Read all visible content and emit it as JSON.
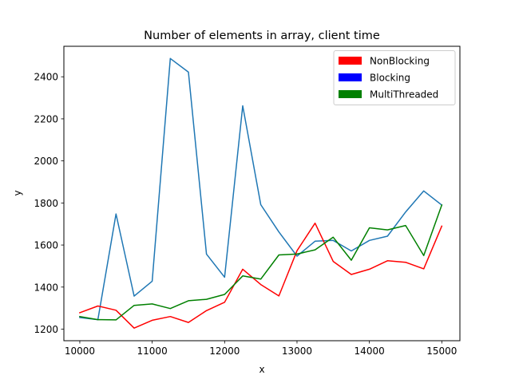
{
  "chart_data": {
    "type": "line",
    "title": "Number of elements in array, client time",
    "xlabel": "x",
    "ylabel": "y",
    "xlim": [
      9780,
      15250
    ],
    "ylim": [
      1145,
      2545
    ],
    "xticks": [
      10000,
      11000,
      12000,
      13000,
      14000,
      15000
    ],
    "yticks": [
      1200,
      1400,
      1600,
      1800,
      2000,
      2200,
      2400
    ],
    "grid": false,
    "legend_position": "top-right",
    "legend": [
      {
        "label": "NonBlocking",
        "color": "#ff0000"
      },
      {
        "label": "Blocking",
        "color": "#0000ff"
      },
      {
        "label": "MultiThreaded",
        "color": "#008000"
      }
    ],
    "x": [
      10000,
      10250,
      10500,
      10750,
      11000,
      11250,
      11500,
      11750,
      12000,
      12250,
      12500,
      12750,
      13000,
      13250,
      13500,
      13750,
      14000,
      14250,
      14500,
      14750,
      15000
    ],
    "series": [
      {
        "color": "#1f77b4",
        "values": [
          1255,
          1245,
          1748,
          1357,
          1428,
          2487,
          2422,
          1557,
          1447,
          2262,
          1792,
          1662,
          1547,
          1618,
          1622,
          1572,
          1622,
          1642,
          1757,
          1857,
          1790
        ]
      },
      {
        "color": "#ff0000",
        "values": [
          1278,
          1310,
          1290,
          1205,
          1242,
          1260,
          1232,
          1288,
          1328,
          1485,
          1412,
          1358,
          1573,
          1704,
          1522,
          1460,
          1485,
          1525,
          1518,
          1487,
          1690
        ]
      },
      {
        "color": "#008000",
        "values": [
          1260,
          1245,
          1244,
          1313,
          1320,
          1298,
          1335,
          1342,
          1365,
          1453,
          1438,
          1553,
          1557,
          1577,
          1637,
          1528,
          1682,
          1672,
          1693,
          1550,
          1790
        ]
      }
    ]
  }
}
